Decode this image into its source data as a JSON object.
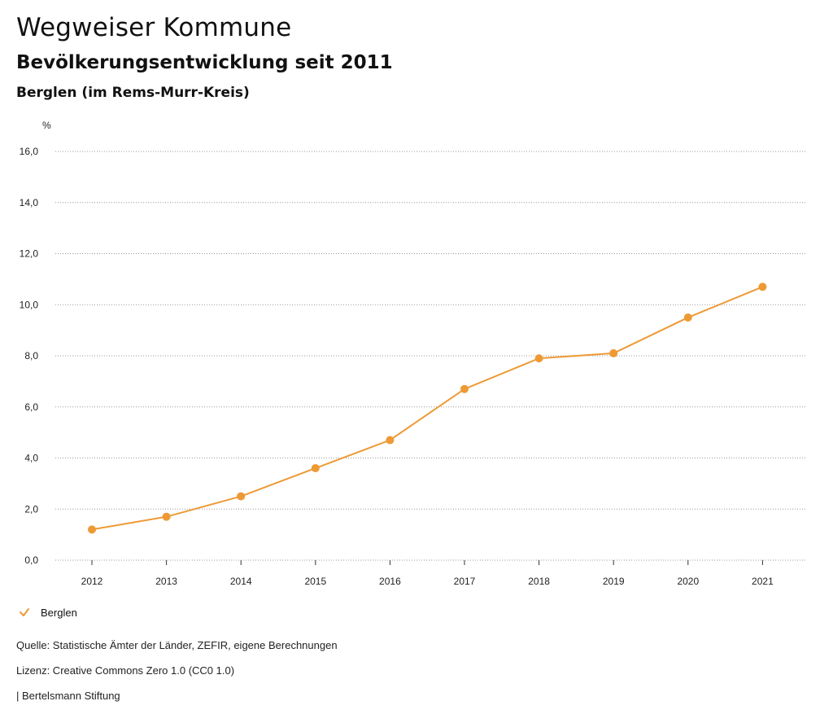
{
  "header": {
    "title": "Wegweiser Kommune",
    "subtitle": "Bevölkerungsentwicklung seit 2011",
    "region": "Berglen (im Rems-Murr-Kreis)"
  },
  "colors": {
    "series": "#ed9a35",
    "grid": "#999999",
    "axis": "#333333"
  },
  "chart_data": {
    "type": "line",
    "title": "Bevölkerungsentwicklung seit 2011",
    "ylabel": "%",
    "xlabel": "",
    "ylim": [
      0,
      16
    ],
    "yticks": [
      0,
      2,
      4,
      6,
      8,
      10,
      12,
      14,
      16
    ],
    "ytick_labels": [
      "0,0",
      "2,0",
      "4,0",
      "6,0",
      "8,0",
      "10,0",
      "12,0",
      "14,0",
      "16,0"
    ],
    "categories": [
      "2012",
      "2013",
      "2014",
      "2015",
      "2016",
      "2017",
      "2018",
      "2019",
      "2020",
      "2021"
    ],
    "series": [
      {
        "name": "Berglen",
        "values": [
          1.2,
          1.7,
          2.5,
          3.6,
          4.7,
          6.7,
          7.9,
          8.1,
          9.5,
          10.7
        ]
      }
    ],
    "grid": true,
    "legend": "bottom-left"
  },
  "legend": {
    "label": "Berglen"
  },
  "footer": {
    "source": "Quelle: Statistische Ämter der Länder, ZEFIR, eigene Berechnungen",
    "license": "Lizenz: Creative Commons Zero 1.0 (CC0 1.0)",
    "publisher": "| Bertelsmann Stiftung"
  }
}
